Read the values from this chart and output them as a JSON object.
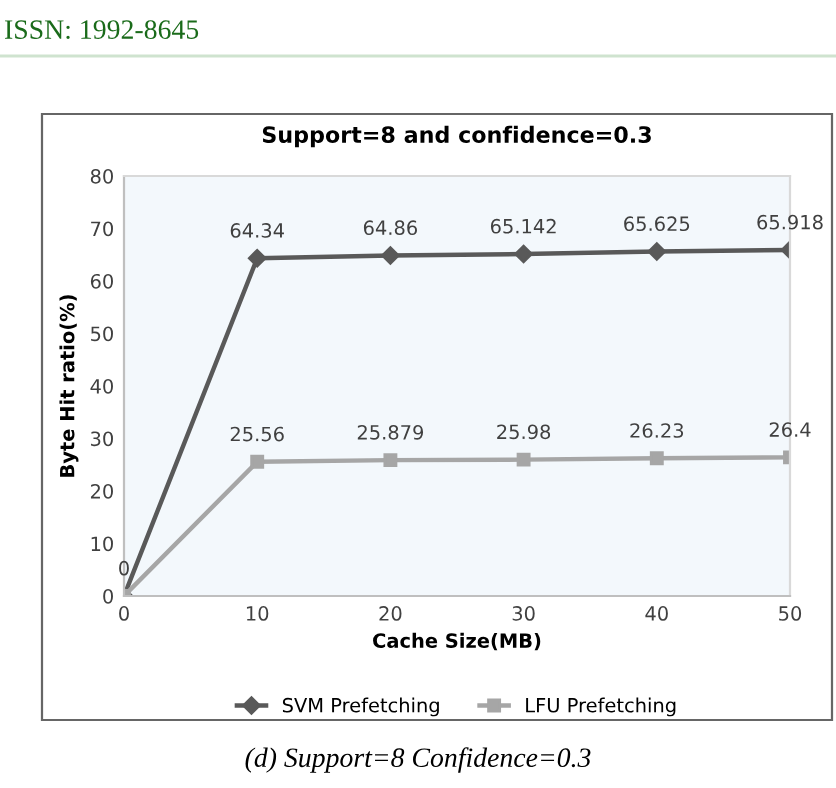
{
  "chart_data": {
    "type": "line",
    "title": "Support=8 and confidence=0.3",
    "xlabel": "Cache Size(MB)",
    "ylabel": "Byte Hit ratio(%)",
    "x": [
      0,
      10,
      20,
      30,
      40,
      50
    ],
    "series": [
      {
        "name": "SVM Prefetching",
        "color": "#595959",
        "marker": "diamond",
        "values": [
          0,
          64.34,
          64.86,
          65.142,
          65.625,
          65.918
        ],
        "value_labels": [
          "0",
          "64.34",
          "64.86",
          "65.142",
          "65.625",
          "65.918"
        ]
      },
      {
        "name": "LFU Prefetching",
        "color": "#a6a6a6",
        "marker": "square",
        "values": [
          0,
          25.56,
          25.879,
          25.98,
          26.23,
          26.4
        ],
        "value_labels": [
          null,
          "25.56",
          "25.879",
          "25.98",
          "26.23",
          "26.4"
        ]
      }
    ],
    "xlim": [
      0,
      50
    ],
    "xticks": [
      0,
      10,
      20,
      30,
      40,
      50
    ],
    "ylim": [
      0,
      80
    ],
    "yticks": [
      0,
      10,
      20,
      30,
      40,
      50,
      60,
      70,
      80
    ],
    "legend": "bottom",
    "grid": false,
    "line_style": "solid",
    "annotations": [
      "ISSN: 1992-8645",
      "(d) Support=8 Confidence=0.3"
    ]
  }
}
